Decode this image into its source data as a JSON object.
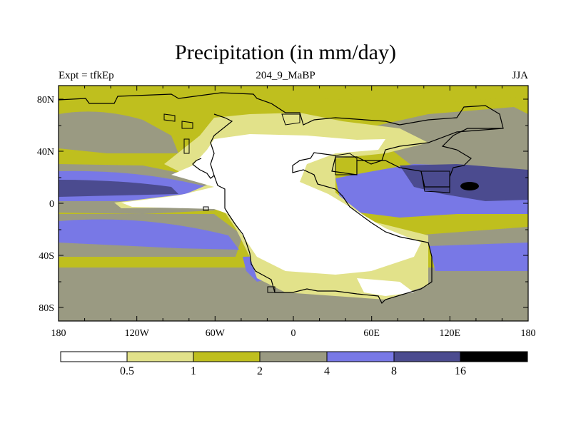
{
  "title": "Precipitation (in mm/day)",
  "subtitle_left": "Expt = tfkEp",
  "subtitle_center": "204_9_MaBP",
  "subtitle_right": "JJA",
  "x_ticks": [
    "180",
    "120W",
    "60W",
    "0",
    "60E",
    "120E",
    "180"
  ],
  "y_ticks": [
    "80N",
    "40N",
    "0",
    "40S",
    "80S"
  ],
  "legend": {
    "labels": [
      "0.5",
      "1",
      "2",
      "4",
      "8",
      "16"
    ],
    "colors": [
      "#ffffff",
      "#e2e28a",
      "#bfbf1e",
      "#9a9a82",
      "#7878e6",
      "#4b4b8f",
      "#000000"
    ]
  },
  "colors": {
    "dry": "#ffffff",
    "light": "#e2e28a",
    "olive": "#bfbf1e",
    "gray": "#9a9a82",
    "blue": "#7878e6",
    "darkblue": "#4b4b8f",
    "black": "#000000"
  }
}
